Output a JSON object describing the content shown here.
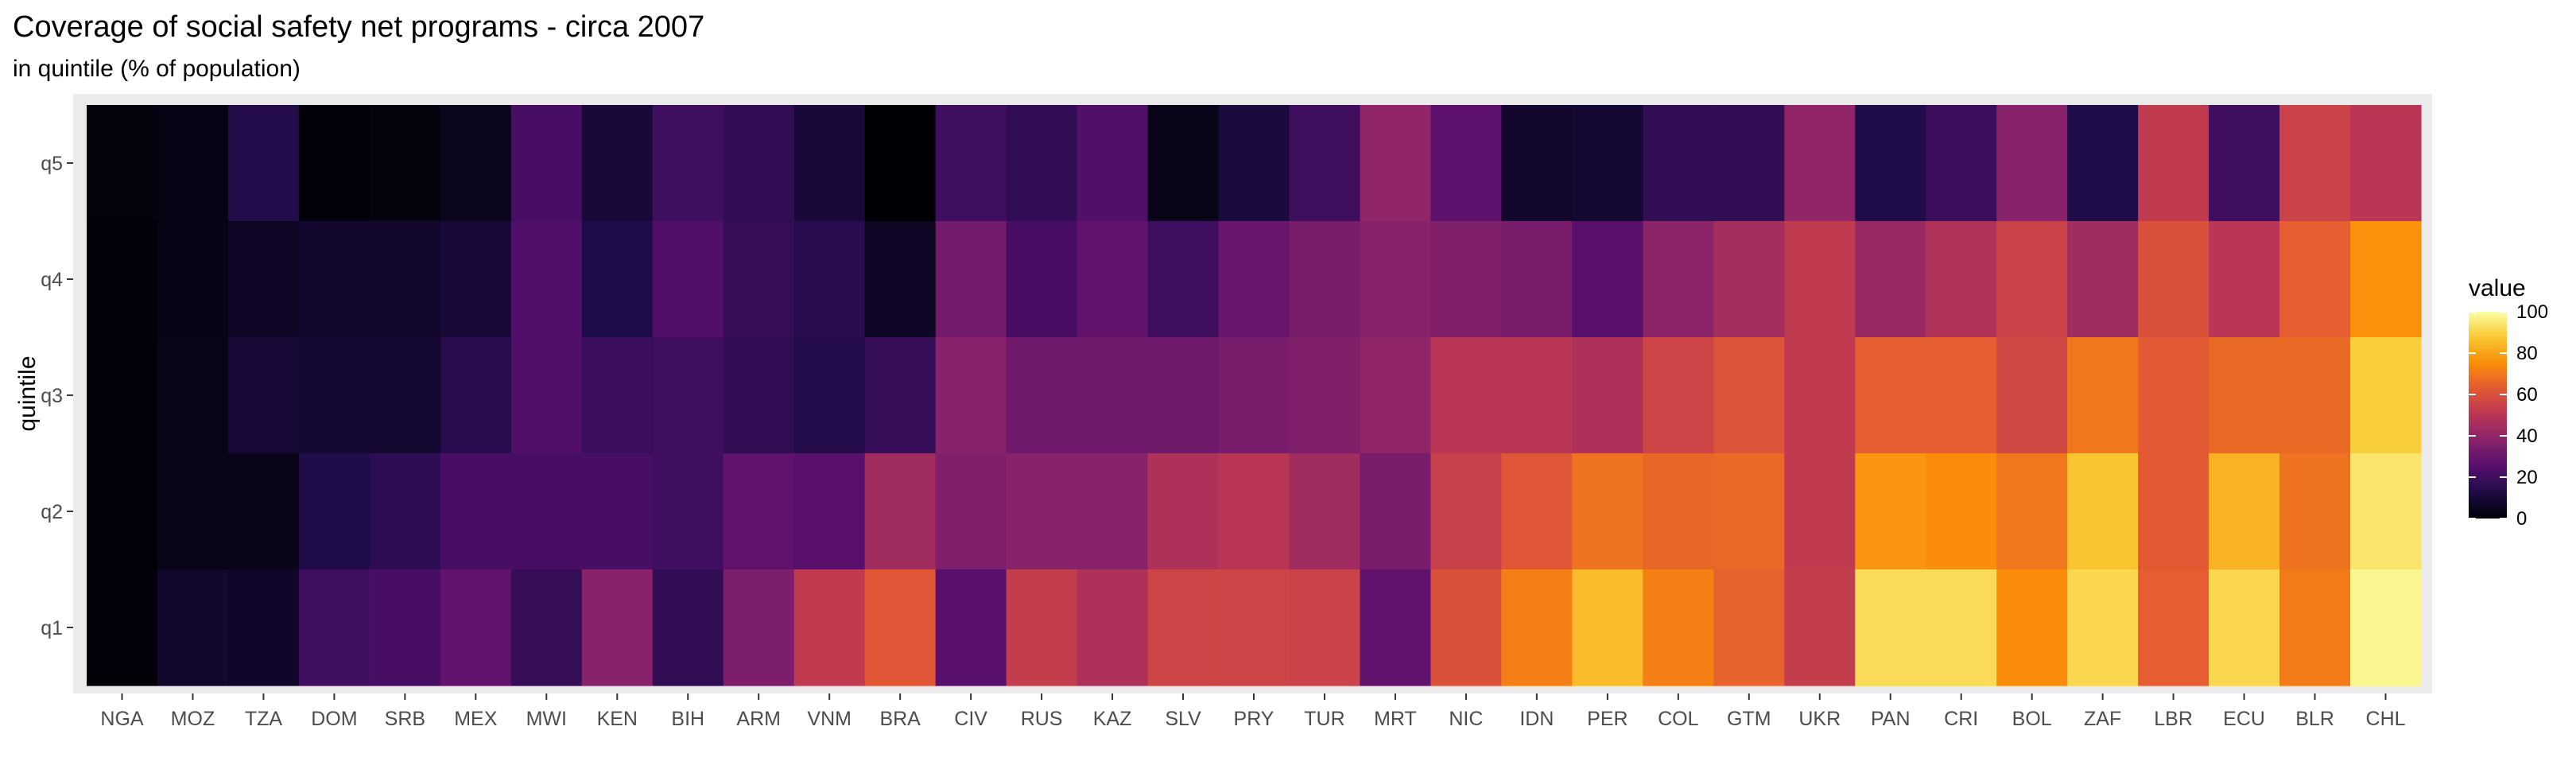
{
  "chart_data": {
    "type": "heatmap",
    "title": "Coverage of social safety net programs - circa 2007",
    "subtitle": "in quintile (% of population)",
    "xlabel": "",
    "ylabel": "quintile",
    "x": [
      "NGA",
      "MOZ",
      "TZA",
      "DOM",
      "SRB",
      "MEX",
      "MWI",
      "KEN",
      "BIH",
      "ARM",
      "VNM",
      "BRA",
      "CIV",
      "RUS",
      "KAZ",
      "SLV",
      "PRY",
      "TUR",
      "MRT",
      "NIC",
      "IDN",
      "PER",
      "COL",
      "GTM",
      "UKR",
      "PAN",
      "CRI",
      "BOL",
      "ZAF",
      "LBR",
      "ECU",
      "BLR",
      "CHL"
    ],
    "y": [
      "q1",
      "q2",
      "q3",
      "q4",
      "q5"
    ],
    "values": {
      "q5": [
        2,
        3,
        14,
        1,
        2,
        5,
        22,
        10,
        20,
        17,
        10,
        0,
        20,
        17,
        24,
        4,
        11,
        20,
        40,
        27,
        8,
        9,
        17,
        17,
        40,
        13,
        19,
        38,
        13,
        52,
        20,
        55,
        50
      ],
      "q4": [
        1,
        3,
        6,
        8,
        8,
        10,
        24,
        13,
        24,
        18,
        15,
        6,
        33,
        22,
        28,
        20,
        30,
        34,
        38,
        36,
        34,
        26,
        39,
        45,
        52,
        42,
        48,
        55,
        44,
        60,
        50,
        64,
        76
      ],
      "q3": [
        1,
        4,
        10,
        9,
        9,
        15,
        24,
        19,
        20,
        17,
        14,
        18,
        38,
        32,
        32,
        32,
        34,
        36,
        40,
        50,
        50,
        47,
        56,
        61,
        52,
        64,
        64,
        57,
        70,
        63,
        67,
        67,
        89
      ],
      "q2": [
        1,
        4,
        4,
        13,
        16,
        22,
        22,
        22,
        20,
        28,
        26,
        44,
        36,
        38,
        38,
        47,
        50,
        44,
        34,
        54,
        62,
        69,
        66,
        67,
        52,
        77,
        75,
        70,
        87,
        63,
        83,
        69,
        94
      ],
      "q1": [
        1,
        8,
        7,
        20,
        22,
        28,
        18,
        38,
        17,
        35,
        52,
        62,
        26,
        53,
        47,
        56,
        56,
        55,
        28,
        60,
        72,
        85,
        72,
        65,
        53,
        92,
        92,
        75,
        91,
        64,
        91,
        71,
        98
      ]
    },
    "colorbar": {
      "title": "value",
      "range": [
        0,
        100
      ],
      "ticks": [
        0,
        20,
        40,
        60,
        80,
        100
      ]
    },
    "colormap": "inferno",
    "panel_background": "#ebebeb",
    "legend_position": "right"
  }
}
